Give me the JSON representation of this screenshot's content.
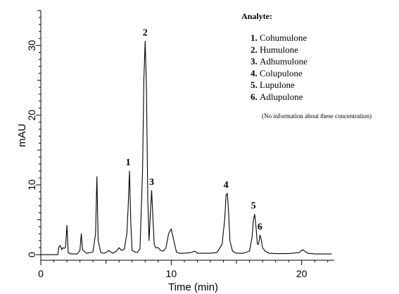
{
  "chart_data": {
    "type": "line",
    "title": "",
    "xlabel": "Time (min)",
    "ylabel": "mAU",
    "xlim": [
      0,
      22.5
    ],
    "ylim": [
      -0.8,
      35
    ],
    "xticks": [
      0,
      10,
      20
    ],
    "yticks": [
      0,
      10,
      20,
      30
    ],
    "grid": false,
    "line_color": "#000000",
    "series": [
      {
        "x": [
          1.3,
          1.4,
          1.5,
          1.6,
          1.7,
          1.8,
          1.9,
          2.0,
          2.1,
          2.3,
          2.5,
          2.8,
          3.0,
          3.1,
          3.2,
          3.5,
          3.8,
          4.0,
          4.2,
          4.3,
          4.4,
          4.6,
          4.8,
          5.0,
          5.2,
          5.5,
          5.8,
          6.0,
          6.2,
          6.4,
          6.6,
          6.7,
          6.8,
          6.9,
          7.0,
          7.2,
          7.4,
          7.6,
          7.8,
          7.9,
          8.0,
          8.1,
          8.2,
          8.3,
          8.4,
          8.5,
          8.6,
          8.7,
          8.8,
          9.0,
          9.2,
          9.4,
          9.6,
          9.8,
          10.0,
          10.2,
          10.4,
          10.6,
          11.0,
          11.5,
          11.8,
          12.0,
          12.5,
          13.0,
          13.5,
          13.9,
          14.1,
          14.2,
          14.3,
          14.4,
          14.5,
          14.7,
          15.0,
          15.5,
          16.0,
          16.2,
          16.3,
          16.4,
          16.5,
          16.6,
          16.7,
          16.8,
          16.9,
          17.0,
          17.2,
          17.5,
          18.0,
          19.0,
          19.8,
          20.0,
          20.1,
          20.3,
          20.5,
          21.0,
          22.3
        ],
        "y": [
          0,
          1.2,
          1.3,
          0.7,
          1.0,
          0.9,
          1.1,
          4.2,
          0.3,
          0.1,
          0.1,
          0.1,
          0.6,
          3.0,
          0.7,
          0.2,
          0.3,
          0.4,
          3.0,
          11.2,
          2.0,
          0.3,
          0.2,
          0.3,
          0.6,
          0.2,
          0.5,
          1.0,
          0.6,
          0.8,
          3.0,
          7.0,
          12.0,
          4.5,
          0.6,
          0.4,
          0.3,
          0.8,
          12.0,
          25.0,
          30.6,
          24.0,
          8.0,
          2.0,
          6.0,
          9.2,
          5.0,
          1.5,
          1.0,
          1.0,
          0.6,
          0.5,
          1.0,
          3.0,
          3.7,
          2.0,
          0.4,
          0.2,
          0.2,
          0.3,
          0.5,
          0.2,
          0.2,
          0.2,
          0.3,
          1.5,
          5.0,
          8.5,
          8.8,
          6.0,
          2.0,
          0.5,
          0.2,
          0.2,
          0.5,
          2.5,
          5.0,
          5.8,
          4.0,
          1.5,
          1.5,
          2.8,
          2.2,
          1.0,
          0.5,
          0.2,
          0.15,
          0.15,
          0.3,
          0.6,
          0.7,
          0.4,
          0.2,
          0.1,
          0.1
        ]
      }
    ],
    "peak_labels": [
      {
        "text": "1",
        "x": 6.7,
        "y": 12.0
      },
      {
        "text": "2",
        "x": 8.0,
        "y": 30.6
      },
      {
        "text": "3",
        "x": 8.5,
        "y": 9.2
      },
      {
        "text": "4",
        "x": 14.2,
        "y": 8.8
      },
      {
        "text": "5",
        "x": 16.3,
        "y": 5.8
      },
      {
        "text": "6",
        "x": 16.8,
        "y": 2.8
      }
    ],
    "legend": {
      "title": "Analyte:",
      "placement": "top-right",
      "items": [
        {
          "num": "1.",
          "name": "Cohumulone"
        },
        {
          "num": "2.",
          "name": "Humulone"
        },
        {
          "num": "3.",
          "name": "Adhumulone"
        },
        {
          "num": "4.",
          "name": "Colupulone"
        },
        {
          "num": "5.",
          "name": "Lupulone"
        },
        {
          "num": "6.",
          "name": "Adlupulone"
        }
      ],
      "note": "(No information about these concentration)"
    }
  }
}
